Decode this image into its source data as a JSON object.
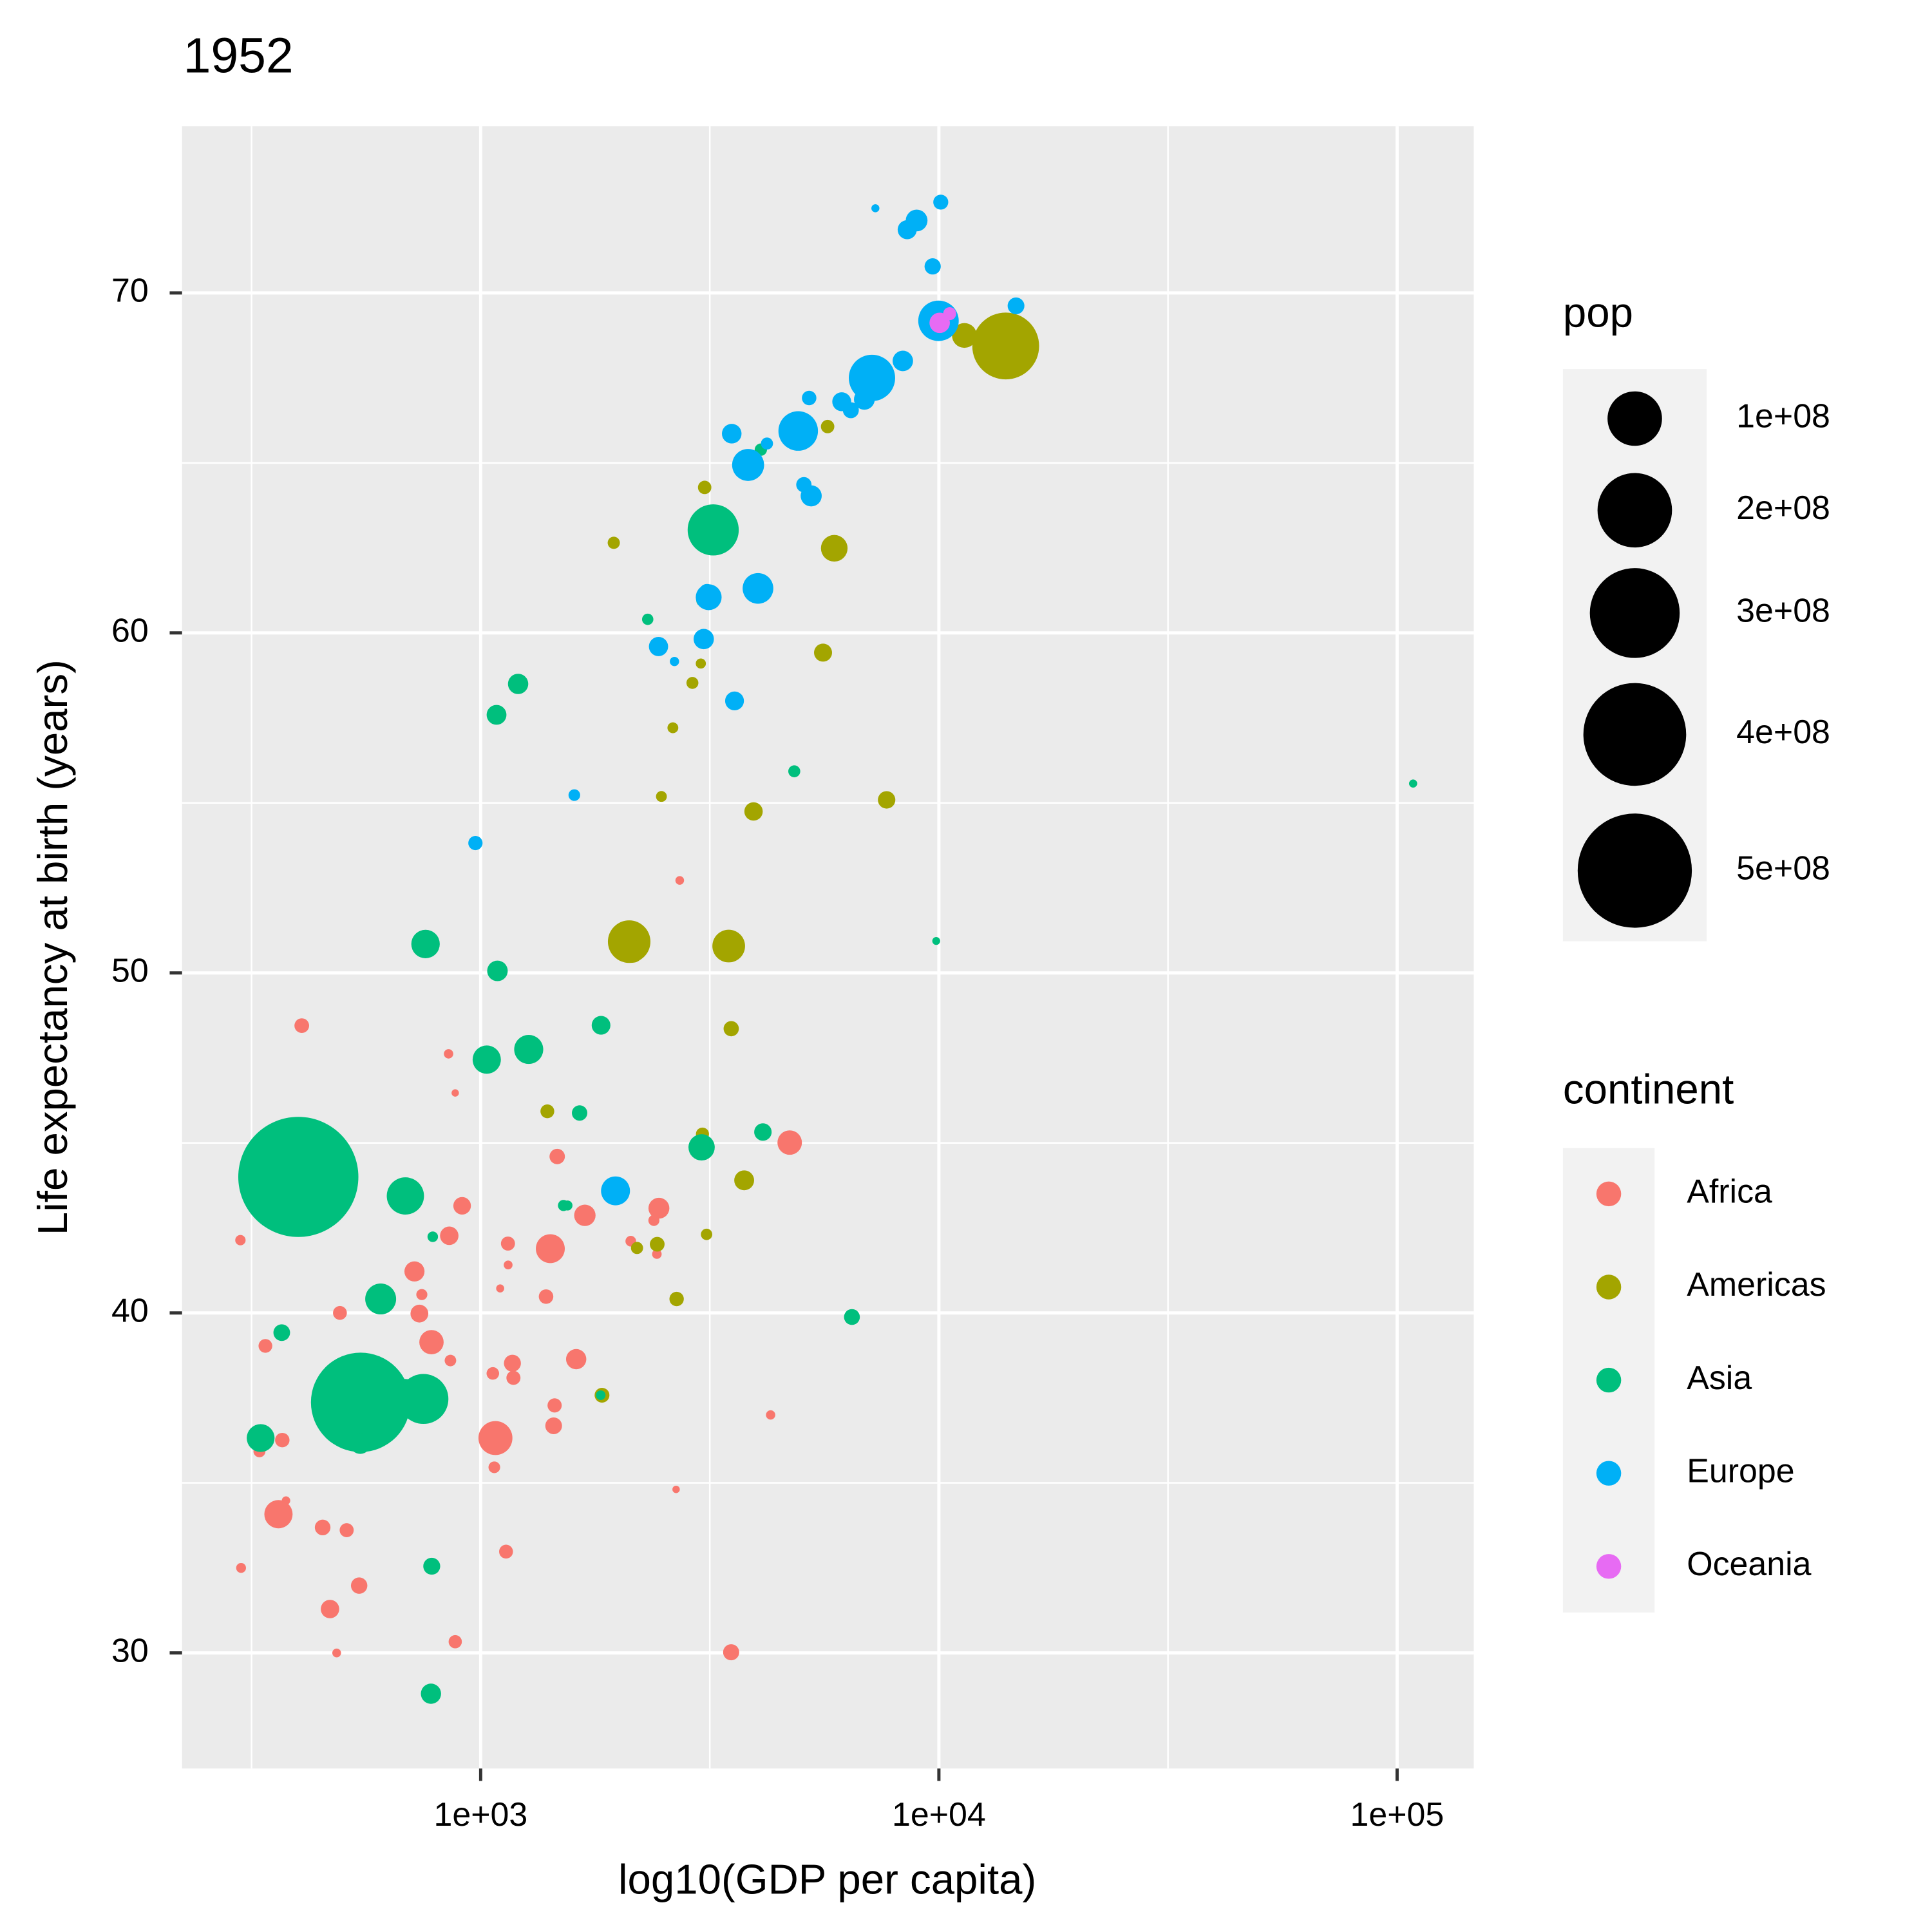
{
  "chart_data": {
    "type": "scatter",
    "title": "1952",
    "x_label": "log10(GDP per capita)",
    "y_label": "Life expectancy at birth (years)",
    "log_x": true,
    "grid": true,
    "xlim": [
      223,
      147000
    ],
    "ylim": [
      26.6,
      74.9
    ],
    "xticks": [
      {
        "value": 1000,
        "label": "1e+03"
      },
      {
        "value": 10000,
        "label": "1e+04"
      },
      {
        "value": 100000,
        "label": "1e+05"
      }
    ],
    "yticks": [
      30,
      40,
      50,
      60,
      70
    ],
    "size_legend": {
      "title": "pop",
      "breaks": [
        {
          "value": 100000000,
          "label": "1e+08"
        },
        {
          "value": 200000000,
          "label": "2e+08"
        },
        {
          "value": 300000000,
          "label": "3e+08"
        },
        {
          "value": 400000000,
          "label": "4e+08"
        },
        {
          "value": 500000000,
          "label": "5e+08"
        }
      ]
    },
    "color_legend": {
      "title": "continent"
    },
    "series": [
      {
        "name": "Africa",
        "color": "#F8766D",
        "x": [
          2449,
          3521,
          1063,
          851,
          543,
          339,
          1173,
          1071,
          1179,
          1103,
          781,
          2126,
          1389,
          2670,
          1419,
          376,
          329,
          362,
          4293,
          485,
          911,
          510,
          300,
          854,
          299,
          575,
          2388,
          1443,
          369,
          452,
          744,
          1968,
          1688,
          469,
          2424,
          762,
          1077,
          2719,
          493,
          880,
          1450,
          880,
          1136,
          4725,
          1616,
          1148,
          717,
          859,
          1469,
          735,
          1147,
          407
        ],
        "values": [
          43.08,
          30.02,
          38.22,
          47.62,
          31.98,
          39.03,
          38.52,
          35.46,
          38.09,
          40.72,
          39.14,
          42.11,
          40.48,
          34.81,
          41.89,
          34.48,
          35.93,
          34.08,
          37.0,
          30.0,
          43.15,
          33.61,
          32.5,
          42.27,
          42.14,
          38.48,
          42.72,
          36.68,
          36.26,
          33.69,
          40.54,
          50.99,
          42.87,
          31.29,
          41.73,
          37.44,
          36.32,
          52.72,
          40.0,
          46.47,
          37.28,
          30.33,
          32.98,
          45.01,
          38.64,
          41.41,
          41.22,
          38.6,
          44.6,
          39.98,
          42.04,
          48.45
        ],
        "sizes": [
          9280000.0,
          4230000.0,
          1740000.0,
          440000.0,
          4470000.0,
          2450000.0,
          5000000.0,
          1290000.0,
          2680000.0,
          150000.0,
          14100000.0,
          850000.0,
          2980000.0,
          63000.0,
          22200000.0,
          220000.0,
          1440000.0,
          20900000.0,
          420000.0,
          280000.0,
          5580000.0,
          2660000.0,
          580000.0,
          6460000.0,
          750000.0,
          860000.0,
          1020000.0,
          4760000.0,
          2920000.0,
          3840000.0,
          1020000.0,
          520000.0,
          9940000.0,
          6450000.0,
          490000.0,
          3380000.0,
          33100000.0,
          260000.0,
          2530000.0,
          60000.0,
          2760000.0,
          2140000.0,
          2530000.0,
          14300000.0,
          8500000.0,
          290000.0,
          8300000.0,
          1220000.0,
          3650000.0,
          5820000.0,
          2670000.0,
          3080000.0
        ]
      },
      {
        "name": "Americas",
        "color": "#A3A500",
        "x": [
          5911,
          2677,
          2109,
          11367,
          3940,
          2144,
          2627,
          5587,
          1398,
          3522,
          3048,
          2428,
          1840,
          2194,
          2898,
          3478,
          3112,
          2480,
          1952,
          3759,
          3082,
          3023,
          13990,
          5717,
          7690
        ],
        "values": [
          62.49,
          40.41,
          50.92,
          68.75,
          54.75,
          50.64,
          57.21,
          59.42,
          45.93,
          48.36,
          45.26,
          42.02,
          37.58,
          41.91,
          58.53,
          50.79,
          42.31,
          55.19,
          62.65,
          43.9,
          64.28,
          59.1,
          68.44,
          66.07,
          55.09
        ],
        "sizes": [
          17900000.0,
          2880000.0,
          56600000.0,
          14800000.0,
          6380000.0,
          12350000.0,
          930000.0,
          6000000.0,
          2490000.0,
          3550000.0,
          2040000.0,
          3150000.0,
          3200000.0,
          1520000.0,
          1430000.0,
          30100000.0,
          1170000.0,
          940000.0,
          1560000.0,
          8030000.0,
          2230000.0,
          660000.0,
          157600000.0,
          2250000.0,
          5440000.0
        ]
      },
      {
        "name": "Asia",
        "color": "#00BF7D",
        "x": [
          779,
          9867,
          684,
          368,
          400,
          3054,
          547,
          750,
          3035,
          4130,
          4087,
          3217,
          1547,
          1088,
          1031,
          108382,
          4835,
          1831,
          786,
          331,
          546,
          1828,
          685,
          1273,
          6460,
          2315,
          1083,
          1644,
          1207,
          758,
          605,
          1516,
          782
        ],
        "values": [
          28.8,
          50.94,
          37.48,
          39.42,
          44.0,
          60.96,
          37.37,
          37.47,
          44.87,
          45.32,
          65.39,
          63.03,
          43.16,
          50.06,
          47.45,
          55.57,
          55.93,
          48.46,
          42.24,
          36.32,
          36.16,
          37.58,
          43.44,
          47.75,
          39.88,
          60.4,
          57.59,
          45.88,
          58.5,
          50.85,
          40.41,
          43.16,
          32.55
        ],
        "sizes": [
          8430000.0,
          120000.0,
          46900000.0,
          4690000.0,
          556300000.0,
          2130000.0,
          372000000.0,
          82100000.0,
          17300000.0,
          5440000.0,
          1620000.0,
          86500000.0,
          610000.0,
          8870000.0,
          20900000.0,
          160000.0,
          1440000.0,
          6750000.0,
          800000.0,
          20100000.0,
          9180000.0,
          510000.0,
          41300000.0,
          22400000.0,
          4000000.0,
          1130000.0,
          7980000.0,
          3660000.0,
          8550000.0,
          21300000.0,
          26200000.0,
          1030000.0,
          4960000.0
        ]
      },
      {
        "name": "Europe",
        "color": "#00B0F6",
        "x": [
          1601,
          6137,
          8343,
          974,
          2444,
          3119,
          6876,
          9692,
          6425,
          7030,
          7144,
          3531,
          5264,
          7268,
          5210,
          4931,
          2648,
          8942,
          10095,
          4029,
          3068,
          3145,
          3581,
          5074,
          4215,
          3834,
          8528,
          14734,
          1969,
          9980
        ],
        "values": [
          55.23,
          66.8,
          68.0,
          53.82,
          59.6,
          61.21,
          66.87,
          70.78,
          66.55,
          67.41,
          67.5,
          65.86,
          64.03,
          72.49,
          66.91,
          65.94,
          59.16,
          72.13,
          72.67,
          61.31,
          59.82,
          61.05,
          58.0,
          64.36,
          65.57,
          64.94,
          71.86,
          69.62,
          43.59,
          69.18
        ],
        "sizes": [
          1280000.0,
          6930000.0,
          8730000.0,
          2790000.0,
          7270000.0,
          3880000.0,
          9130000.0,
          4330000.0,
          4090000.0,
          42500000.0,
          69100000.0,
          7730000.0,
          9500000.0,
          147000.0,
          2950000.0,
          47700000.0,
          410000.0,
          10400000.0,
          3330000.0,
          25700000.0,
          8530000.0,
          16600000.0,
          6860000.0,
          3560000.0,
          1490000.0,
          28500000.0,
          7120000.0,
          4820000.0,
          22200000.0,
          50400000.0
        ]
      },
      {
        "name": "Oceania",
        "color": "#E76BF3",
        "x": [
          10040,
          10557
        ],
        "values": [
          69.12,
          69.39
        ],
        "sizes": [
          8690000.0,
          1990000.0
        ]
      }
    ]
  }
}
